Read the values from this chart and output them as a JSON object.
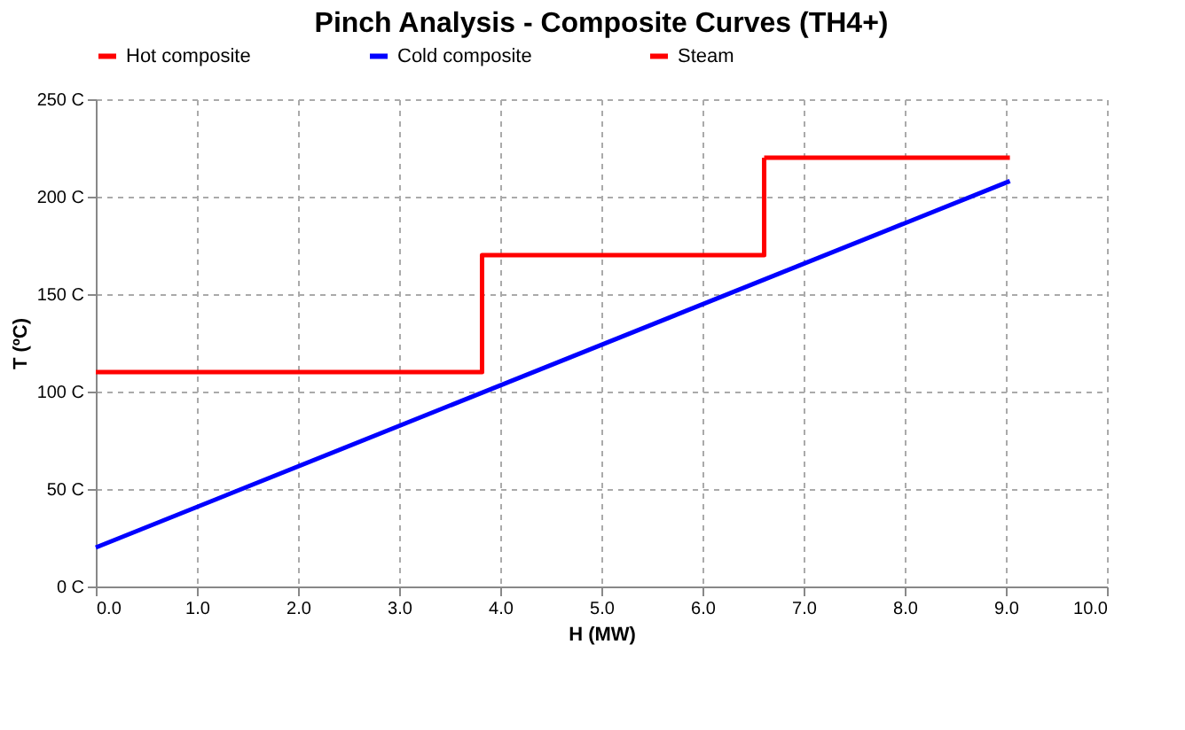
{
  "chart_data": {
    "type": "line",
    "title": "Pinch Analysis - Composite Curves (TH4+)",
    "xlabel": "H (MW)",
    "ylabel": "T (ºC)",
    "series": [
      {
        "name": "Hot composite",
        "color": "#ff0000",
        "x": [
          0,
          3.82,
          3.82,
          6.61,
          6.61
        ],
        "values": [
          110,
          110,
          170,
          170,
          220
        ]
      },
      {
        "name": "Cold composite",
        "color": "#0000ff",
        "x": [
          0,
          9.04
        ],
        "values": [
          20,
          208
        ]
      },
      {
        "name": "Steam",
        "color": "#ff0000",
        "x": [
          6.61,
          9.04
        ],
        "values": [
          220,
          220
        ]
      }
    ],
    "xlim": [
      0,
      10
    ],
    "ylim": [
      0,
      250
    ],
    "xticks": [
      {
        "value": 0,
        "label": "0.0"
      },
      {
        "value": 1,
        "label": "1.0"
      },
      {
        "value": 2,
        "label": "2.0"
      },
      {
        "value": 3,
        "label": "3.0"
      },
      {
        "value": 4,
        "label": "4.0"
      },
      {
        "value": 5,
        "label": "5.0"
      },
      {
        "value": 6,
        "label": "6.0"
      },
      {
        "value": 7,
        "label": "7.0"
      },
      {
        "value": 8,
        "label": "8.0"
      },
      {
        "value": 9,
        "label": "9.0"
      },
      {
        "value": 10,
        "label": "10.0"
      }
    ],
    "yticks": [
      {
        "value": 0,
        "label": "0 C"
      },
      {
        "value": 50,
        "label": "50 C"
      },
      {
        "value": 100,
        "label": "100 C"
      },
      {
        "value": 150,
        "label": "150 C"
      },
      {
        "value": 200,
        "label": "200 C"
      },
      {
        "value": 250,
        "label": "250 C"
      }
    ],
    "grid": true,
    "legend": "top",
    "marker": "none",
    "line_style": "solid"
  }
}
